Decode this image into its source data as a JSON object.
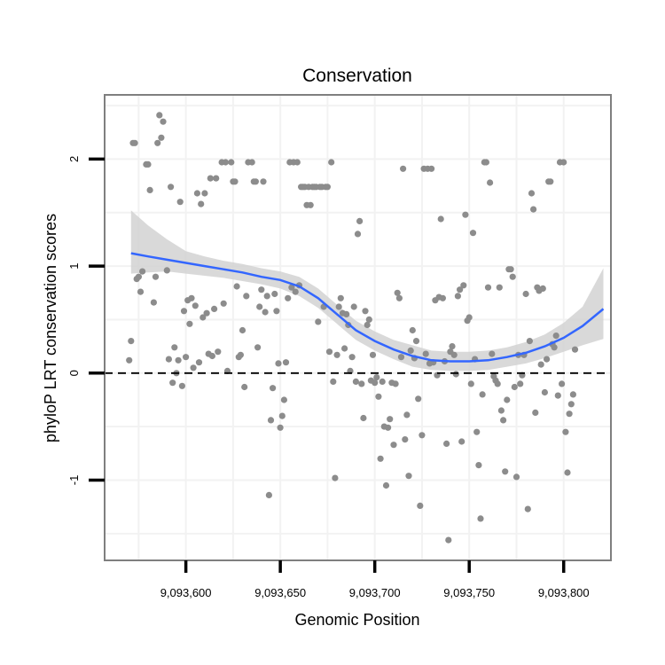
{
  "chart_data": {
    "type": "scatter",
    "title": "Conservation",
    "xlabel": "Genomic Position",
    "ylabel": "phyloP LRT conservation scores",
    "xlim": [
      9093557,
      9093825
    ],
    "ylim": [
      -1.75,
      2.6
    ],
    "x_ticks": [
      9093600,
      9093650,
      9093700,
      9093750,
      9093800
    ],
    "x_tick_labels": [
      "9,093,600",
      "9,093,650",
      "9,093,700",
      "9,093,750",
      "9,093,800"
    ],
    "y_ticks": [
      -1,
      0,
      1,
      2
    ],
    "y_tick_labels": [
      "-1",
      "0",
      "1",
      "2"
    ],
    "reference_line": {
      "y": 0,
      "style": "dashed"
    },
    "grid": true,
    "colors": {
      "points": "#8c8c8c",
      "smooth_line": "#3366ff",
      "confidence_band": "#d2d2d2",
      "grid": "#f2f2f2",
      "border": "#7f7f7f"
    },
    "series": [
      {
        "name": "phyloP scores",
        "kind": "points",
        "points": [
          [
            9093570,
            0.12
          ],
          [
            9093571,
            0.3
          ],
          [
            9093572,
            2.15
          ],
          [
            9093573,
            2.15
          ],
          [
            9093574,
            0.88
          ],
          [
            9093575,
            0.9
          ],
          [
            9093576,
            0.76
          ],
          [
            9093577,
            0.95
          ],
          [
            9093579,
            1.95
          ],
          [
            9093580,
            1.95
          ],
          [
            9093581,
            1.71
          ],
          [
            9093583,
            0.66
          ],
          [
            9093584,
            0.9
          ],
          [
            9093585,
            2.15
          ],
          [
            9093586,
            2.41
          ],
          [
            9093587,
            2.2
          ],
          [
            9093588,
            2.35
          ],
          [
            9093590,
            0.96
          ],
          [
            9093591,
            0.13
          ],
          [
            9093592,
            1.74
          ],
          [
            9093593,
            -0.09
          ],
          [
            9093594,
            0.24
          ],
          [
            9093595,
            0.0
          ],
          [
            9093596,
            0.12
          ],
          [
            9093597,
            1.6
          ],
          [
            9093598,
            -0.12
          ],
          [
            9093599,
            0.58
          ],
          [
            9093600,
            0.15
          ],
          [
            9093601,
            0.68
          ],
          [
            9093602,
            0.46
          ],
          [
            9093603,
            0.7
          ],
          [
            9093604,
            0.05
          ],
          [
            9093605,
            0.63
          ],
          [
            9093606,
            1.68
          ],
          [
            9093607,
            0.1
          ],
          [
            9093608,
            1.58
          ],
          [
            9093609,
            0.52
          ],
          [
            9093610,
            1.68
          ],
          [
            9093611,
            0.56
          ],
          [
            9093612,
            0.18
          ],
          [
            9093613,
            1.82
          ],
          [
            9093614,
            0.16
          ],
          [
            9093615,
            0.6
          ],
          [
            9093616,
            1.82
          ],
          [
            9093617,
            0.2
          ],
          [
            9093619,
            1.97
          ],
          [
            9093620,
            0.65
          ],
          [
            9093621,
            1.97
          ],
          [
            9093622,
            0.02
          ],
          [
            9093624,
            1.97
          ],
          [
            9093625,
            1.79
          ],
          [
            9093626,
            1.79
          ],
          [
            9093627,
            0.81
          ],
          [
            9093628,
            0.15
          ],
          [
            9093629,
            0.17
          ],
          [
            9093630,
            0.4
          ],
          [
            9093631,
            -0.13
          ],
          [
            9093632,
            0.72
          ],
          [
            9093633,
            1.97
          ],
          [
            9093635,
            1.97
          ],
          [
            9093636,
            1.79
          ],
          [
            9093637,
            1.79
          ],
          [
            9093638,
            0.24
          ],
          [
            9093639,
            0.62
          ],
          [
            9093640,
            0.78
          ],
          [
            9093641,
            1.79
          ],
          [
            9093642,
            0.57
          ],
          [
            9093643,
            0.72
          ],
          [
            9093644,
            -1.14
          ],
          [
            9093645,
            -0.44
          ],
          [
            9093646,
            -0.14
          ],
          [
            9093647,
            0.74
          ],
          [
            9093648,
            0.58
          ],
          [
            9093649,
            0.09
          ],
          [
            9093650,
            -0.51
          ],
          [
            9093651,
            -0.4
          ],
          [
            9093652,
            -0.25
          ],
          [
            9093653,
            0.1
          ],
          [
            9093654,
            0.7
          ],
          [
            9093655,
            1.97
          ],
          [
            9093656,
            0.8
          ],
          [
            9093657,
            1.97
          ],
          [
            9093658,
            0.76
          ],
          [
            9093659,
            1.97
          ],
          [
            9093660,
            0.82
          ],
          [
            9093661,
            1.74
          ],
          [
            9093662,
            1.74
          ],
          [
            9093663,
            1.74
          ],
          [
            9093664,
            1.57
          ],
          [
            9093665,
            1.74
          ],
          [
            9093666,
            1.57
          ],
          [
            9093667,
            1.74
          ],
          [
            9093668,
            1.74
          ],
          [
            9093669,
            1.74
          ],
          [
            9093670,
            0.48
          ],
          [
            9093671,
            1.74
          ],
          [
            9093672,
            1.74
          ],
          [
            9093673,
            0.62
          ],
          [
            9093674,
            1.74
          ],
          [
            9093675,
            1.74
          ],
          [
            9093676,
            0.2
          ],
          [
            9093677,
            1.97
          ],
          [
            9093678,
            -0.08
          ],
          [
            9093679,
            -0.98
          ],
          [
            9093680,
            0.17
          ],
          [
            9093681,
            0.62
          ],
          [
            9093682,
            0.7
          ],
          [
            9093683,
            0.56
          ],
          [
            9093684,
            0.23
          ],
          [
            9093685,
            0.55
          ],
          [
            9093686,
            0.45
          ],
          [
            9093687,
            0.02
          ],
          [
            9093688,
            0.15
          ],
          [
            9093689,
            0.62
          ],
          [
            9093690,
            -0.08
          ],
          [
            9093691,
            1.3
          ],
          [
            9093692,
            1.42
          ],
          [
            9093693,
            -0.1
          ],
          [
            9093694,
            -0.42
          ],
          [
            9093695,
            0.58
          ],
          [
            9093696,
            0.45
          ],
          [
            9093697,
            0.5
          ],
          [
            9093698,
            -0.07
          ],
          [
            9093699,
            0.17
          ],
          [
            9093700,
            -0.09
          ],
          [
            9093701,
            -0.04
          ],
          [
            9093702,
            -0.22
          ],
          [
            9093703,
            -0.8
          ],
          [
            9093704,
            -0.08
          ],
          [
            9093705,
            -0.5
          ],
          [
            9093706,
            -1.05
          ],
          [
            9093707,
            -0.51
          ],
          [
            9093708,
            -0.43
          ],
          [
            9093709,
            -0.09
          ],
          [
            9093710,
            -0.67
          ],
          [
            9093711,
            -0.1
          ],
          [
            9093712,
            0.75
          ],
          [
            9093713,
            0.7
          ],
          [
            9093714,
            0.15
          ],
          [
            9093715,
            1.91
          ],
          [
            9093716,
            -0.62
          ],
          [
            9093717,
            -0.39
          ],
          [
            9093718,
            -0.96
          ],
          [
            9093719,
            0.21
          ],
          [
            9093720,
            0.4
          ],
          [
            9093721,
            0.14
          ],
          [
            9093722,
            0.3
          ],
          [
            9093723,
            -0.24
          ],
          [
            9093724,
            -1.24
          ],
          [
            9093725,
            -0.58
          ],
          [
            9093726,
            1.91
          ],
          [
            9093727,
            0.18
          ],
          [
            9093728,
            1.91
          ],
          [
            9093729,
            0.09
          ],
          [
            9093730,
            1.91
          ],
          [
            9093731,
            0.1
          ],
          [
            9093732,
            0.68
          ],
          [
            9093733,
            -0.02
          ],
          [
            9093734,
            0.71
          ],
          [
            9093735,
            1.44
          ],
          [
            9093736,
            0.7
          ],
          [
            9093737,
            0.11
          ],
          [
            9093738,
            -0.66
          ],
          [
            9093739,
            -1.56
          ],
          [
            9093740,
            0.2
          ],
          [
            9093741,
            0.25
          ],
          [
            9093742,
            0.17
          ],
          [
            9093743,
            -0.01
          ],
          [
            9093744,
            0.72
          ],
          [
            9093745,
            0.78
          ],
          [
            9093746,
            -0.64
          ],
          [
            9093747,
            0.82
          ],
          [
            9093748,
            1.48
          ],
          [
            9093749,
            0.49
          ],
          [
            9093750,
            0.52
          ],
          [
            9093751,
            -0.1
          ],
          [
            9093752,
            1.31
          ],
          [
            9093753,
            0.13
          ],
          [
            9093754,
            -0.55
          ],
          [
            9093755,
            -0.86
          ],
          [
            9093756,
            -1.36
          ],
          [
            9093757,
            -0.2
          ],
          [
            9093758,
            1.97
          ],
          [
            9093759,
            1.97
          ],
          [
            9093760,
            0.8
          ],
          [
            9093761,
            1.78
          ],
          [
            9093762,
            0.18
          ],
          [
            9093763,
            -0.03
          ],
          [
            9093764,
            -0.07
          ],
          [
            9093765,
            -0.1
          ],
          [
            9093766,
            0.8
          ],
          [
            9093767,
            -0.35
          ],
          [
            9093768,
            -0.44
          ],
          [
            9093769,
            -0.92
          ],
          [
            9093770,
            -0.25
          ],
          [
            9093771,
            0.97
          ],
          [
            9093772,
            0.97
          ],
          [
            9093773,
            0.9
          ],
          [
            9093774,
            -0.13
          ],
          [
            9093775,
            -0.97
          ],
          [
            9093776,
            0.17
          ],
          [
            9093777,
            -0.1
          ],
          [
            9093778,
            -0.02
          ],
          [
            9093779,
            0.17
          ],
          [
            9093780,
            0.74
          ],
          [
            9093781,
            -1.27
          ],
          [
            9093782,
            0.3
          ],
          [
            9093783,
            1.68
          ],
          [
            9093784,
            1.53
          ],
          [
            9093785,
            -0.37
          ],
          [
            9093786,
            0.8
          ],
          [
            9093787,
            0.77
          ],
          [
            9093788,
            0.08
          ],
          [
            9093789,
            0.79
          ],
          [
            9093790,
            -0.18
          ],
          [
            9093791,
            0.13
          ],
          [
            9093792,
            1.79
          ],
          [
            9093793,
            1.79
          ],
          [
            9093794,
            0.27
          ],
          [
            9093795,
            0.24
          ],
          [
            9093796,
            0.35
          ],
          [
            9093797,
            -0.21
          ],
          [
            9093798,
            1.97
          ],
          [
            9093799,
            -0.1
          ],
          [
            9093800,
            1.97
          ],
          [
            9093801,
            -0.55
          ],
          [
            9093802,
            -0.93
          ],
          [
            9093803,
            -0.38
          ],
          [
            9093804,
            -0.29
          ],
          [
            9093805,
            -0.2
          ],
          [
            9093806,
            0.22
          ]
        ]
      },
      {
        "name": "loess fit",
        "kind": "line",
        "x": [
          9093571,
          9093580,
          9093590,
          9093600,
          9093610,
          9093620,
          9093630,
          9093640,
          9093650,
          9093660,
          9093670,
          9093680,
          9093690,
          9093700,
          9093710,
          9093720,
          9093730,
          9093740,
          9093750,
          9093760,
          9093770,
          9093780,
          9093790,
          9093800,
          9093810,
          9093821
        ],
        "y": [
          1.12,
          1.09,
          1.06,
          1.03,
          1.0,
          0.97,
          0.94,
          0.9,
          0.87,
          0.81,
          0.7,
          0.55,
          0.4,
          0.3,
          0.22,
          0.16,
          0.12,
          0.11,
          0.11,
          0.12,
          0.15,
          0.19,
          0.25,
          0.33,
          0.44,
          0.6
        ],
        "lower": [
          0.93,
          0.94,
          0.95,
          0.93,
          0.91,
          0.89,
          0.86,
          0.83,
          0.79,
          0.72,
          0.61,
          0.46,
          0.31,
          0.21,
          0.13,
          0.06,
          0.03,
          0.02,
          0.02,
          0.03,
          0.06,
          0.09,
          0.14,
          0.2,
          0.26,
          0.32
        ],
        "upper": [
          1.52,
          1.38,
          1.25,
          1.14,
          1.09,
          1.05,
          1.02,
          0.98,
          0.95,
          0.9,
          0.79,
          0.64,
          0.49,
          0.39,
          0.31,
          0.26,
          0.21,
          0.2,
          0.2,
          0.21,
          0.24,
          0.29,
          0.36,
          0.47,
          0.62,
          0.98
        ]
      }
    ]
  }
}
